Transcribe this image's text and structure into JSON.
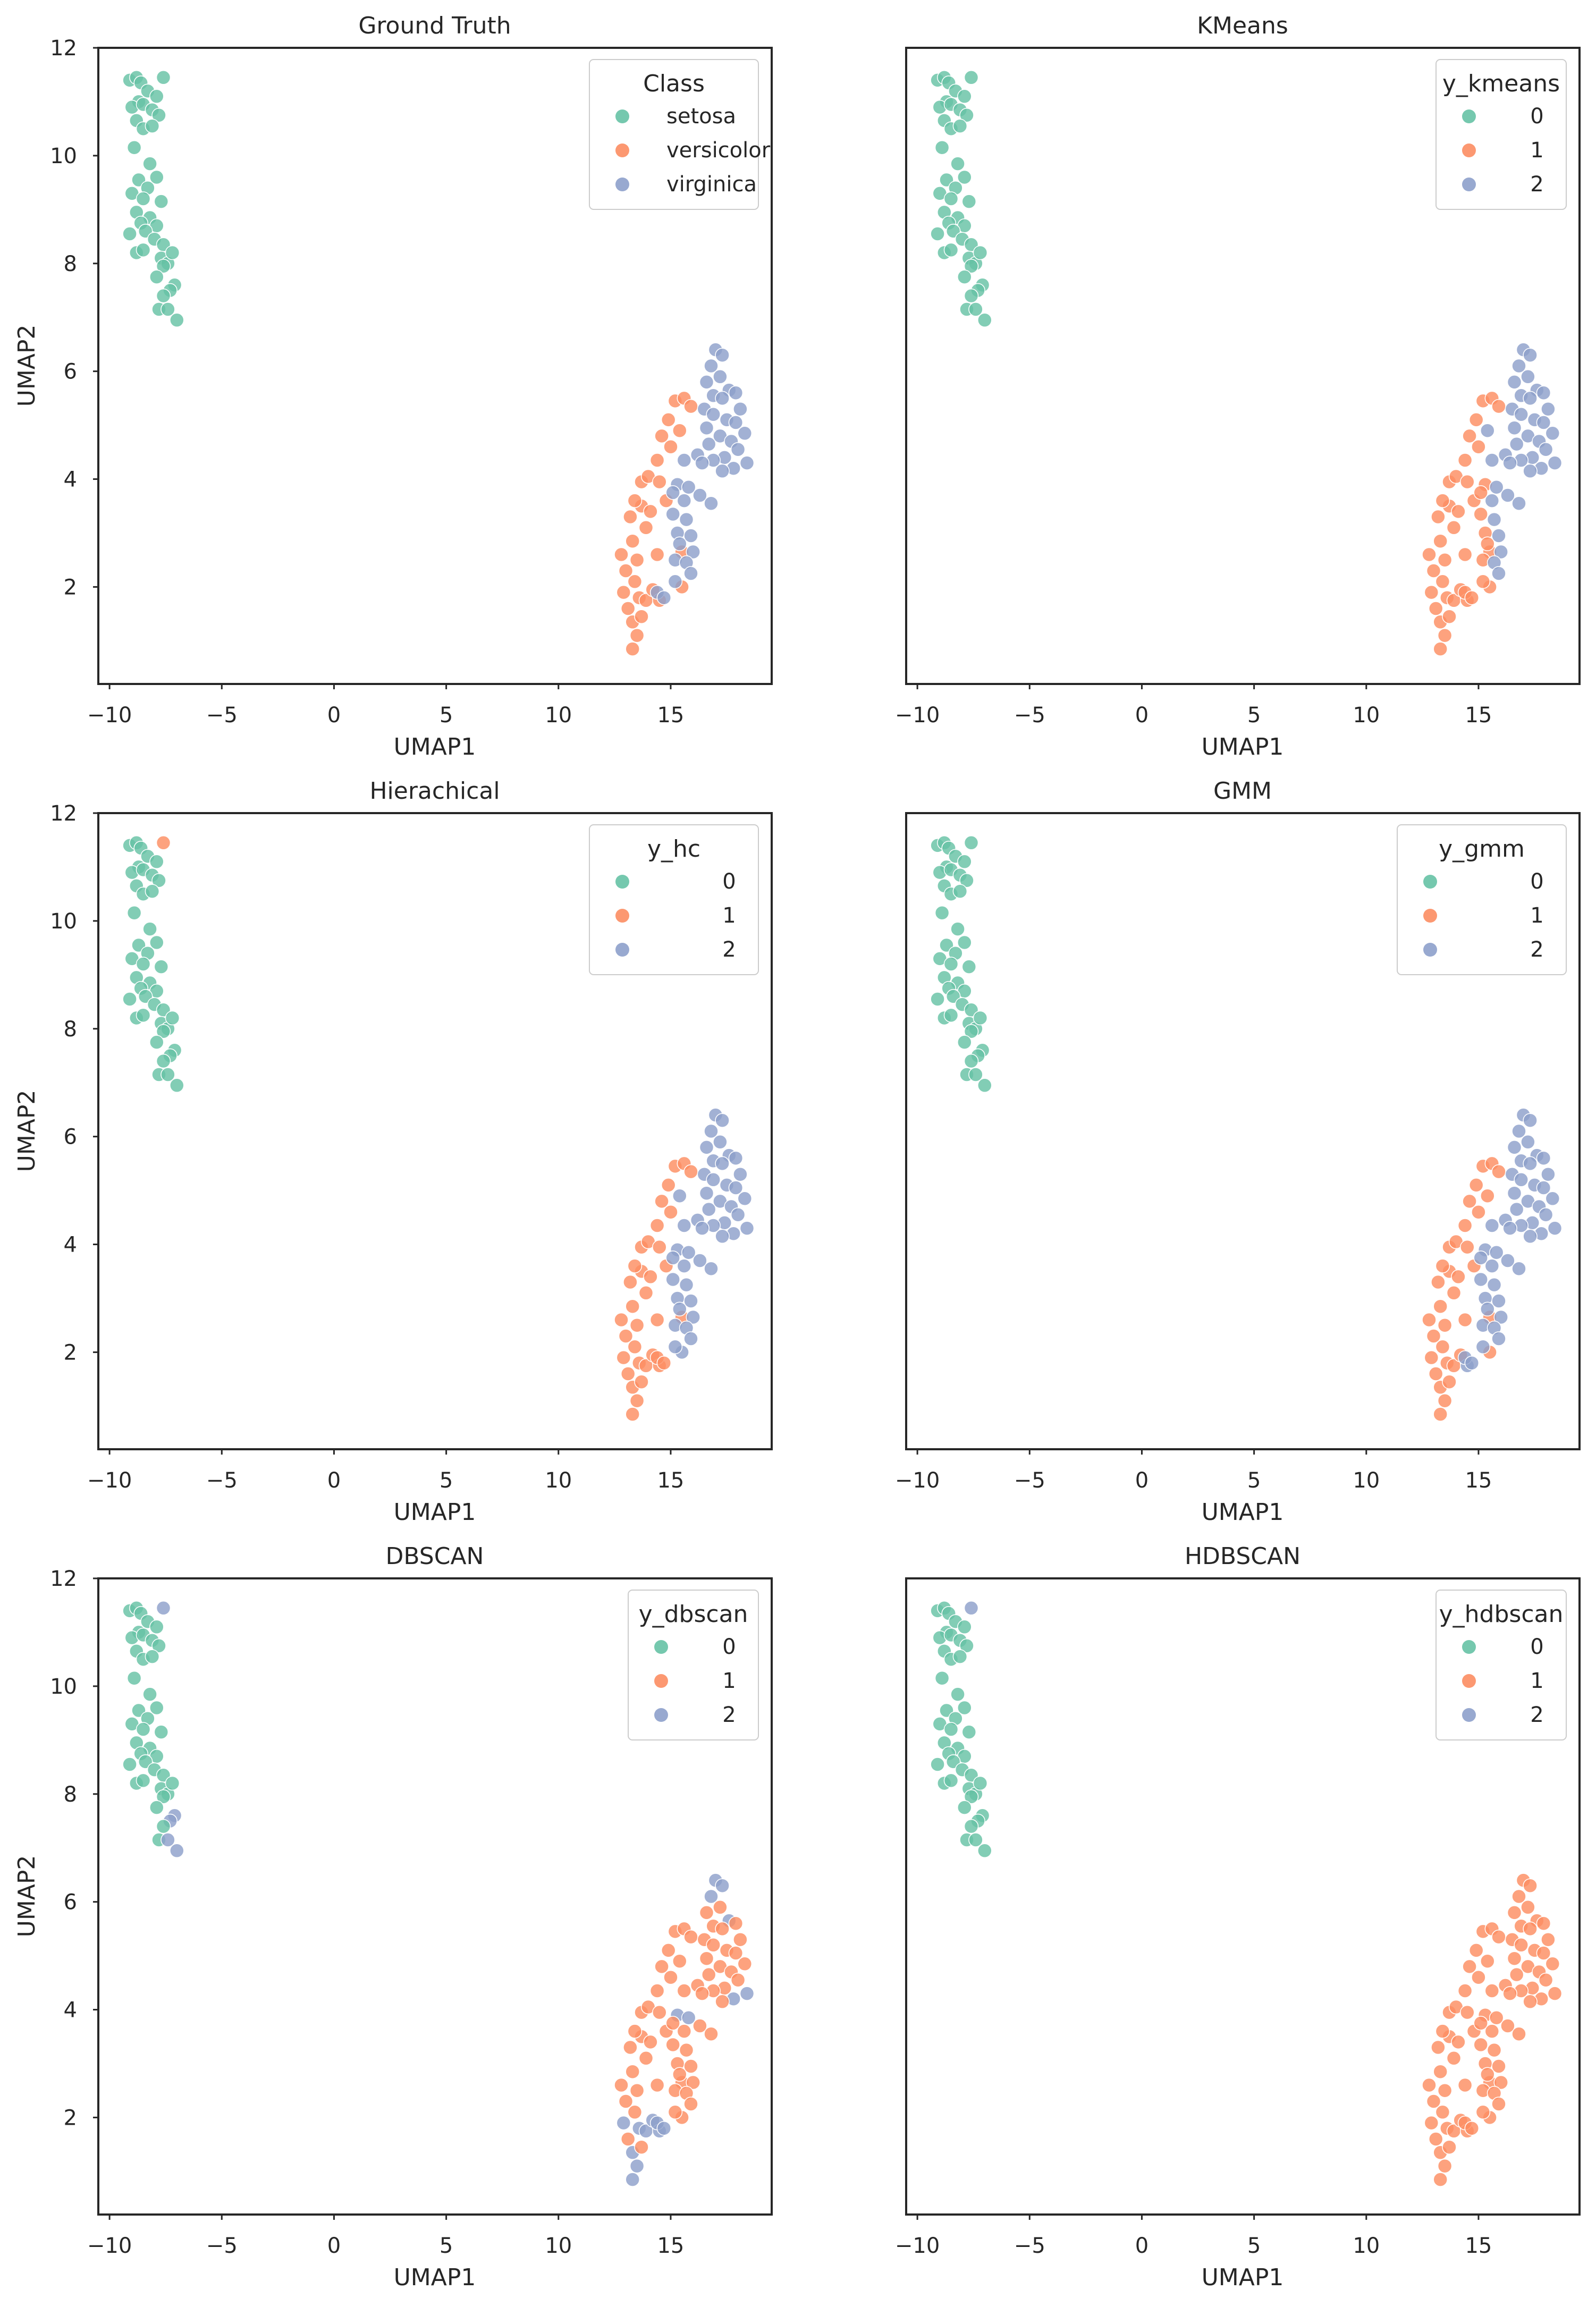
{
  "colors": {
    "c0": "#66c2a5",
    "c1": "#fc8d62",
    "c2": "#8da0cb",
    "frame": "#262626"
  },
  "chart_data": [
    {
      "type": "scatter",
      "title": "Ground Truth",
      "xlabel": "UMAP1",
      "ylabel": "UMAP2",
      "legend_title": "Class",
      "legend_labels": [
        "setosa",
        "versicolor",
        "virginica"
      ],
      "xlim": [
        -10.5,
        19.5
      ],
      "ylim": [
        0.2,
        12.0
      ],
      "xticks": [
        -10,
        -5,
        0,
        5,
        10,
        15
      ],
      "yticks": [
        2,
        4,
        6,
        8,
        10,
        12
      ],
      "label_field": "gt",
      "legend_placement": "top-right"
    },
    {
      "type": "scatter",
      "title": "KMeans",
      "xlabel": "UMAP1",
      "ylabel": "",
      "legend_title": "y_kmeans",
      "legend_labels": [
        "0",
        "1",
        "2"
      ],
      "xlim": [
        -10.5,
        19.5
      ],
      "ylim": [
        0.2,
        12.0
      ],
      "xticks": [
        -10,
        -5,
        0,
        5,
        10,
        15
      ],
      "yticks": [],
      "label_field": "km",
      "legend_placement": "top-right"
    },
    {
      "type": "scatter",
      "title": "Hierachical",
      "xlabel": "UMAP1",
      "ylabel": "UMAP2",
      "legend_title": "y_hc",
      "legend_labels": [
        "0",
        "1",
        "2"
      ],
      "xlim": [
        -10.5,
        19.5
      ],
      "ylim": [
        0.2,
        12.0
      ],
      "xticks": [
        -10,
        -5,
        0,
        5,
        10,
        15
      ],
      "yticks": [
        2,
        4,
        6,
        8,
        10,
        12
      ],
      "label_field": "hc",
      "legend_placement": "top-right"
    },
    {
      "type": "scatter",
      "title": "GMM",
      "xlabel": "UMAP1",
      "ylabel": "",
      "legend_title": "y_gmm",
      "legend_labels": [
        "0",
        "1",
        "2"
      ],
      "xlim": [
        -10.5,
        19.5
      ],
      "ylim": [
        0.2,
        12.0
      ],
      "xticks": [
        -10,
        -5,
        0,
        5,
        10,
        15
      ],
      "yticks": [],
      "label_field": "gmm",
      "legend_placement": "top-right"
    },
    {
      "type": "scatter",
      "title": "DBSCAN",
      "xlabel": "UMAP1",
      "ylabel": "UMAP2",
      "legend_title": "y_dbscan",
      "legend_labels": [
        "0",
        "1",
        "2"
      ],
      "xlim": [
        -10.5,
        19.5
      ],
      "ylim": [
        0.2,
        12.0
      ],
      "xticks": [
        -10,
        -5,
        0,
        5,
        10,
        15
      ],
      "yticks": [
        2,
        4,
        6,
        8,
        10,
        12
      ],
      "label_field": "db",
      "legend_placement": "top-right"
    },
    {
      "type": "scatter",
      "title": "HDBSCAN",
      "xlabel": "UMAP1",
      "ylabel": "",
      "legend_title": "y_hdbscan",
      "legend_labels": [
        "0",
        "1",
        "2"
      ],
      "xlim": [
        -10.5,
        19.5
      ],
      "ylim": [
        0.2,
        12.0
      ],
      "xticks": [
        -10,
        -5,
        0,
        5,
        10,
        15
      ],
      "yticks": [],
      "label_field": "hdb",
      "legend_placement": "top-right"
    }
  ],
  "points": {
    "fields": [
      "x",
      "y",
      "gt",
      "km",
      "hc",
      "gmm",
      "db",
      "hdb"
    ],
    "rows": [
      [
        -9.1,
        11.4,
        0,
        0,
        0,
        0,
        0,
        0
      ],
      [
        -8.8,
        11.45,
        0,
        0,
        0,
        0,
        0,
        0
      ],
      [
        -8.6,
        11.35,
        0,
        0,
        0,
        0,
        0,
        0
      ],
      [
        -7.6,
        11.45,
        0,
        0,
        1,
        0,
        2,
        2
      ],
      [
        -8.3,
        11.2,
        0,
        0,
        0,
        0,
        0,
        0
      ],
      [
        -7.9,
        11.1,
        0,
        0,
        0,
        0,
        0,
        0
      ],
      [
        -8.7,
        11.0,
        0,
        0,
        0,
        0,
        0,
        0
      ],
      [
        -9.0,
        10.9,
        0,
        0,
        0,
        0,
        0,
        0
      ],
      [
        -8.5,
        10.95,
        0,
        0,
        0,
        0,
        0,
        0
      ],
      [
        -8.1,
        10.85,
        0,
        0,
        0,
        0,
        0,
        0
      ],
      [
        -8.8,
        10.65,
        0,
        0,
        0,
        0,
        0,
        0
      ],
      [
        -7.8,
        10.75,
        0,
        0,
        0,
        0,
        0,
        0
      ],
      [
        -8.5,
        10.5,
        0,
        0,
        0,
        0,
        0,
        0
      ],
      [
        -8.1,
        10.55,
        0,
        0,
        0,
        0,
        0,
        0
      ],
      [
        -8.9,
        10.15,
        0,
        0,
        0,
        0,
        0,
        0
      ],
      [
        -8.2,
        9.85,
        0,
        0,
        0,
        0,
        0,
        0
      ],
      [
        -8.7,
        9.55,
        0,
        0,
        0,
        0,
        0,
        0
      ],
      [
        -7.9,
        9.6,
        0,
        0,
        0,
        0,
        0,
        0
      ],
      [
        -8.3,
        9.4,
        0,
        0,
        0,
        0,
        0,
        0
      ],
      [
        -9.0,
        9.3,
        0,
        0,
        0,
        0,
        0,
        0
      ],
      [
        -8.5,
        9.2,
        0,
        0,
        0,
        0,
        0,
        0
      ],
      [
        -7.7,
        9.15,
        0,
        0,
        0,
        0,
        0,
        0
      ],
      [
        -8.8,
        8.95,
        0,
        0,
        0,
        0,
        0,
        0
      ],
      [
        -8.2,
        8.85,
        0,
        0,
        0,
        0,
        0,
        0
      ],
      [
        -8.6,
        8.75,
        0,
        0,
        0,
        0,
        0,
        0
      ],
      [
        -7.9,
        8.7,
        0,
        0,
        0,
        0,
        0,
        0
      ],
      [
        -9.1,
        8.55,
        0,
        0,
        0,
        0,
        0,
        0
      ],
      [
        -8.4,
        8.6,
        0,
        0,
        0,
        0,
        0,
        0
      ],
      [
        -8.0,
        8.45,
        0,
        0,
        0,
        0,
        0,
        0
      ],
      [
        -7.6,
        8.35,
        0,
        0,
        0,
        0,
        0,
        0
      ],
      [
        -8.8,
        8.2,
        0,
        0,
        0,
        0,
        0,
        0
      ],
      [
        -8.5,
        8.25,
        0,
        0,
        0,
        0,
        0,
        0
      ],
      [
        -7.7,
        8.1,
        0,
        0,
        0,
        0,
        0,
        0
      ],
      [
        -7.4,
        8.0,
        0,
        0,
        0,
        0,
        0,
        0
      ],
      [
        -7.6,
        7.95,
        0,
        0,
        0,
        0,
        0,
        0
      ],
      [
        -7.2,
        8.2,
        0,
        0,
        0,
        0,
        0,
        0
      ],
      [
        -7.9,
        7.75,
        0,
        0,
        0,
        0,
        0,
        0
      ],
      [
        -7.1,
        7.6,
        0,
        0,
        0,
        0,
        2,
        0
      ],
      [
        -7.3,
        7.5,
        0,
        0,
        0,
        0,
        2,
        0
      ],
      [
        -7.6,
        7.4,
        0,
        0,
        0,
        0,
        0,
        0
      ],
      [
        -7.8,
        7.15,
        0,
        0,
        0,
        0,
        0,
        0
      ],
      [
        -7.4,
        7.15,
        0,
        0,
        0,
        0,
        2,
        0
      ],
      [
        -7.0,
        6.95,
        0,
        0,
        0,
        0,
        2,
        0
      ],
      [
        12.8,
        2.6,
        1,
        1,
        1,
        1,
        1,
        1
      ],
      [
        13.3,
        2.85,
        1,
        1,
        1,
        1,
        1,
        1
      ],
      [
        13.0,
        2.3,
        1,
        1,
        1,
        1,
        1,
        1
      ],
      [
        13.5,
        2.5,
        1,
        1,
        1,
        1,
        1,
        1
      ],
      [
        12.9,
        1.9,
        1,
        1,
        1,
        1,
        2,
        1
      ],
      [
        13.4,
        2.1,
        1,
        1,
        1,
        1,
        1,
        1
      ],
      [
        13.1,
        1.6,
        1,
        1,
        1,
        1,
        1,
        1
      ],
      [
        13.6,
        1.8,
        1,
        1,
        1,
        1,
        2,
        1
      ],
      [
        13.3,
        1.35,
        1,
        1,
        1,
        1,
        2,
        1
      ],
      [
        13.7,
        1.45,
        1,
        1,
        1,
        1,
        1,
        1
      ],
      [
        13.5,
        1.1,
        1,
        1,
        1,
        1,
        2,
        1
      ],
      [
        13.3,
        0.85,
        1,
        1,
        1,
        1,
        2,
        1
      ],
      [
        13.9,
        1.75,
        1,
        1,
        1,
        1,
        2,
        1
      ],
      [
        14.2,
        1.95,
        1,
        1,
        1,
        1,
        2,
        1
      ],
      [
        14.5,
        1.75,
        1,
        1,
        1,
        2,
        2,
        1
      ],
      [
        13.2,
        3.3,
        1,
        1,
        1,
        1,
        1,
        1
      ],
      [
        13.7,
        3.5,
        1,
        1,
        1,
        1,
        1,
        1
      ],
      [
        13.4,
        3.6,
        1,
        1,
        1,
        1,
        1,
        1
      ],
      [
        14.1,
        3.4,
        1,
        1,
        1,
        1,
        1,
        1
      ],
      [
        13.7,
        3.95,
        1,
        1,
        1,
        1,
        1,
        1
      ],
      [
        14.0,
        4.05,
        1,
        1,
        1,
        1,
        1,
        1
      ],
      [
        14.5,
        3.95,
        1,
        1,
        1,
        1,
        1,
        1
      ],
      [
        14.8,
        3.6,
        1,
        1,
        1,
        1,
        1,
        1
      ],
      [
        14.4,
        4.35,
        1,
        1,
        1,
        1,
        1,
        1
      ],
      [
        14.6,
        4.8,
        1,
        1,
        1,
        1,
        1,
        1
      ],
      [
        15.0,
        4.6,
        1,
        1,
        1,
        1,
        1,
        1
      ],
      [
        14.9,
        5.1,
        1,
        1,
        1,
        1,
        1,
        1
      ],
      [
        15.2,
        5.45,
        1,
        1,
        1,
        1,
        1,
        1
      ],
      [
        15.6,
        5.5,
        1,
        1,
        1,
        1,
        1,
        1
      ],
      [
        15.9,
        5.35,
        1,
        1,
        1,
        1,
        1,
        1
      ],
      [
        15.4,
        4.9,
        1,
        2,
        2,
        1,
        1,
        1
      ],
      [
        15.5,
        2.65,
        1,
        1,
        1,
        1,
        1,
        1
      ],
      [
        15.5,
        2.0,
        1,
        1,
        2,
        1,
        1,
        1
      ],
      [
        14.4,
        2.6,
        1,
        1,
        1,
        1,
        1,
        1
      ],
      [
        13.9,
        3.1,
        1,
        1,
        1,
        1,
        1,
        1
      ],
      [
        17.0,
        6.4,
        2,
        2,
        2,
        2,
        2,
        1
      ],
      [
        17.3,
        6.3,
        2,
        2,
        2,
        2,
        2,
        1
      ],
      [
        16.8,
        6.1,
        2,
        2,
        2,
        2,
        2,
        1
      ],
      [
        17.2,
        5.9,
        2,
        2,
        2,
        2,
        1,
        1
      ],
      [
        16.6,
        5.8,
        2,
        2,
        2,
        2,
        1,
        1
      ],
      [
        17.6,
        5.65,
        2,
        2,
        2,
        2,
        2,
        1
      ],
      [
        17.9,
        5.6,
        2,
        2,
        2,
        2,
        1,
        1
      ],
      [
        16.9,
        5.55,
        2,
        2,
        2,
        2,
        1,
        1
      ],
      [
        17.3,
        5.5,
        2,
        2,
        2,
        2,
        1,
        1
      ],
      [
        16.5,
        5.3,
        2,
        2,
        2,
        2,
        1,
        1
      ],
      [
        18.1,
        5.3,
        2,
        2,
        2,
        2,
        1,
        1
      ],
      [
        16.9,
        5.2,
        2,
        2,
        2,
        2,
        1,
        1
      ],
      [
        17.5,
        5.1,
        2,
        2,
        2,
        2,
        1,
        1
      ],
      [
        17.9,
        5.05,
        2,
        2,
        2,
        2,
        1,
        1
      ],
      [
        16.6,
        4.95,
        2,
        2,
        2,
        2,
        1,
        1
      ],
      [
        18.3,
        4.85,
        2,
        2,
        2,
        2,
        1,
        1
      ],
      [
        17.2,
        4.8,
        2,
        2,
        2,
        2,
        1,
        1
      ],
      [
        17.7,
        4.7,
        2,
        2,
        2,
        2,
        1,
        1
      ],
      [
        16.7,
        4.65,
        2,
        2,
        2,
        2,
        1,
        1
      ],
      [
        18.0,
        4.55,
        2,
        2,
        2,
        2,
        1,
        1
      ],
      [
        16.2,
        4.45,
        2,
        2,
        2,
        2,
        1,
        1
      ],
      [
        17.4,
        4.4,
        2,
        2,
        2,
        2,
        1,
        1
      ],
      [
        16.9,
        4.35,
        2,
        2,
        2,
        2,
        1,
        1
      ],
      [
        18.4,
        4.3,
        2,
        2,
        2,
        2,
        2,
        1
      ],
      [
        16.4,
        4.3,
        2,
        2,
        2,
        2,
        1,
        1
      ],
      [
        17.8,
        4.2,
        2,
        2,
        2,
        2,
        2,
        1
      ],
      [
        17.3,
        4.15,
        2,
        2,
        2,
        2,
        1,
        1
      ],
      [
        15.6,
        4.35,
        2,
        2,
        2,
        2,
        1,
        1
      ],
      [
        15.3,
        3.9,
        2,
        1,
        2,
        2,
        2,
        1
      ],
      [
        15.8,
        3.85,
        2,
        2,
        2,
        2,
        2,
        1
      ],
      [
        15.1,
        3.75,
        2,
        1,
        2,
        2,
        1,
        1
      ],
      [
        15.6,
        3.6,
        2,
        2,
        2,
        2,
        1,
        1
      ],
      [
        16.3,
        3.7,
        2,
        2,
        2,
        2,
        1,
        1
      ],
      [
        16.8,
        3.55,
        2,
        2,
        2,
        2,
        1,
        1
      ],
      [
        15.1,
        3.35,
        2,
        1,
        2,
        2,
        1,
        1
      ],
      [
        15.7,
        3.25,
        2,
        2,
        2,
        2,
        1,
        1
      ],
      [
        15.3,
        3.0,
        2,
        1,
        2,
        2,
        1,
        1
      ],
      [
        15.9,
        2.95,
        2,
        2,
        2,
        2,
        1,
        1
      ],
      [
        15.4,
        2.8,
        2,
        1,
        2,
        2,
        1,
        1
      ],
      [
        16.0,
        2.65,
        2,
        2,
        2,
        2,
        1,
        1
      ],
      [
        15.2,
        2.5,
        2,
        1,
        2,
        2,
        1,
        1
      ],
      [
        15.7,
        2.45,
        2,
        2,
        2,
        2,
        1,
        1
      ],
      [
        15.9,
        2.25,
        2,
        2,
        2,
        2,
        1,
        1
      ],
      [
        15.2,
        2.1,
        2,
        1,
        2,
        2,
        1,
        1
      ],
      [
        14.4,
        1.9,
        2,
        1,
        1,
        2,
        2,
        1
      ],
      [
        14.7,
        1.8,
        2,
        1,
        1,
        2,
        2,
        1
      ]
    ]
  }
}
